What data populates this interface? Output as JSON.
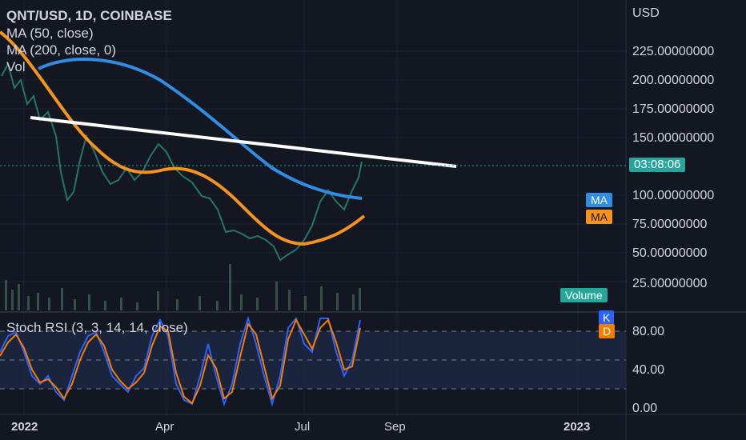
{
  "symbol": {
    "title": "QNT/USD, 1D, COINBASE"
  },
  "indicators": {
    "ma50": "MA (50, close)",
    "ma200": "MA (200, close, 0)",
    "vol": "Vol",
    "stoch": "Stoch RSI (3, 3, 14, 14, close)"
  },
  "price_axis": {
    "currency": "USD",
    "ticks": [
      "225.00000000",
      "200.00000000",
      "175.00000000",
      "150.00000000",
      "100.00000000",
      "75.00000000",
      "50.00000000",
      "25.00000000"
    ]
  },
  "stoch_axis": {
    "ticks": [
      "80.00",
      "40.00",
      "0.00"
    ]
  },
  "time_axis": {
    "labels": [
      "2022",
      "Apr",
      "Jul",
      "Sep",
      "2023"
    ]
  },
  "badges": {
    "countdown": "03:08:06",
    "ma_blue": "MA",
    "ma_orange": "MA",
    "volume": "Volume",
    "k": "K",
    "d": "D"
  },
  "colors": {
    "background": "#131722",
    "ma50": "#f7931a",
    "ma200": "#2f8de4",
    "stoch_k": "#2962ff",
    "stoch_d": "#f57c00",
    "trendline": "#ffffff",
    "countdown": "#26a69a",
    "volume_badge": "#26a69a"
  },
  "chart_data": {
    "type": "line",
    "title": "QNT/USD, 1D, COINBASE",
    "series": [
      {
        "name": "MA (50, close)",
        "x": [
          "2022-01-01",
          "2022-02-01",
          "2022-03-01",
          "2022-04-01",
          "2022-05-01",
          "2022-06-01",
          "2022-07-01",
          "2022-08-01"
        ],
        "values": [
          205,
          165,
          130,
          128,
          110,
          75,
          60,
          82
        ]
      },
      {
        "name": "MA (200, close, 0)",
        "x": [
          "2022-01-15",
          "2022-02-15",
          "2022-03-15",
          "2022-04-15",
          "2022-05-15",
          "2022-06-15",
          "2022-07-15",
          "2022-08-15"
        ],
        "values": [
          215,
          220,
          205,
          180,
          145,
          118,
          105,
          97
        ]
      }
    ],
    "ylabel": "USD",
    "ylim": [
      0,
      250
    ]
  }
}
